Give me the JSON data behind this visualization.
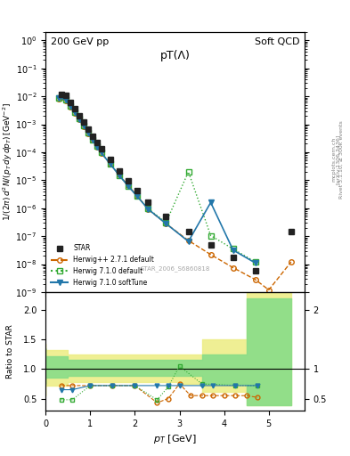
{
  "title_plot": "pT(Λ)",
  "top_left_label": "200 GeV pp",
  "top_right_label": "Soft QCD",
  "right_label": "Rivet 3.1.10, ≥ 300k events",
  "arxiv_label": "[arXiv:1306.3436]",
  "mcplots_label": "mcplots.cern.ch",
  "watermark": "STAR_2006_S6860818",
  "ylabel_main": "1/(2π) d²N/(p_T dy dp_T) [GeV⁻²]",
  "ylabel_ratio": "Ratio to STAR",
  "xlabel": "p_T [GeV]",
  "star_x": [
    0.35,
    0.45,
    0.55,
    0.65,
    0.75,
    0.85,
    0.95,
    1.05,
    1.15,
    1.25,
    1.45,
    1.65,
    1.85,
    2.05,
    2.3,
    2.7,
    3.2,
    3.7,
    4.2,
    4.7,
    5.5
  ],
  "star_y": [
    0.012,
    0.011,
    0.006,
    0.0035,
    0.002,
    0.0012,
    0.00065,
    0.00038,
    0.00022,
    0.00013,
    5.5e-05,
    2.2e-05,
    9.5e-06,
    4.2e-06,
    1.6e-06,
    5e-07,
    1.5e-07,
    5e-08,
    1.8e-08,
    6e-09,
    1.5e-07
  ],
  "star_yerr_lo": [
    0.001,
    0.001,
    0.0005,
    0.0003,
    0.0002,
    0.0001,
    6e-05,
    3.5e-05,
    2e-05,
    1.2e-05,
    5e-06,
    2e-06,
    9e-07,
    4e-07,
    1.5e-07,
    5e-08,
    1.5e-08,
    5e-09,
    2e-09,
    6e-10,
    1.5e-08
  ],
  "star_yerr_hi": [
    0.001,
    0.001,
    0.0005,
    0.0003,
    0.0002,
    0.0001,
    6e-05,
    3.5e-05,
    2e-05,
    1.2e-05,
    5e-06,
    2e-06,
    9e-07,
    4e-07,
    1.5e-07,
    5e-08,
    1.5e-08,
    5e-09,
    2e-09,
    6e-10,
    1.5e-08
  ],
  "hwpp_x": [
    0.3,
    0.45,
    0.55,
    0.65,
    0.75,
    0.85,
    0.95,
    1.05,
    1.15,
    1.25,
    1.45,
    1.65,
    1.85,
    2.05,
    2.3,
    2.7,
    3.2,
    3.7,
    4.2,
    4.7,
    5.0,
    5.5
  ],
  "hwpp_y": [
    0.008,
    0.007,
    0.0042,
    0.0025,
    0.0015,
    0.00085,
    0.00048,
    0.00028,
    0.00016,
    9.5e-05,
    3.8e-05,
    1.55e-05,
    6.5e-06,
    2.8e-06,
    9e-07,
    2.8e-07,
    7e-08,
    2.2e-08,
    7.5e-09,
    2.8e-09,
    1.2e-09,
    1.2e-08
  ],
  "hw710_x": [
    0.3,
    0.45,
    0.55,
    0.65,
    0.75,
    0.85,
    0.95,
    1.05,
    1.15,
    1.25,
    1.45,
    1.65,
    1.85,
    2.05,
    2.3,
    2.7,
    3.2,
    3.7,
    4.2,
    4.7
  ],
  "hw710_y": [
    0.009,
    0.0075,
    0.0044,
    0.0026,
    0.0016,
    0.00088,
    0.00049,
    0.00028,
    0.000165,
    9.8e-05,
    3.8e-05,
    1.5e-05,
    6.3e-06,
    2.7e-06,
    9.5e-07,
    3.1e-07,
    2e-05,
    1.05e-07,
    3.5e-08,
    1.2e-08
  ],
  "hw710st_x": [
    0.3,
    0.45,
    0.55,
    0.65,
    0.75,
    0.85,
    0.95,
    1.05,
    1.15,
    1.25,
    1.45,
    1.65,
    1.85,
    2.05,
    2.3,
    2.7,
    3.2,
    3.7,
    4.2,
    4.7
  ],
  "hw710st_y": [
    0.009,
    0.0075,
    0.0044,
    0.0026,
    0.00155,
    0.00087,
    0.00049,
    0.00028,
    0.00016,
    9.6e-05,
    3.8e-05,
    1.5e-05,
    6.2e-06,
    2.7e-06,
    9.2e-07,
    2.8e-07,
    6.5e-08,
    1.6e-06,
    3.2e-08,
    1.1e-08
  ],
  "ratio_hwpp_x": [
    0.35,
    0.6,
    1.0,
    1.5,
    2.0,
    2.5,
    2.75,
    3.0,
    3.25,
    3.5,
    3.75,
    4.0,
    4.25,
    4.5,
    4.75
  ],
  "ratio_hwpp_y": [
    0.72,
    0.72,
    0.72,
    0.72,
    0.72,
    0.43,
    0.5,
    0.75,
    0.55,
    0.55,
    0.55,
    0.55,
    0.55,
    0.55,
    0.52
  ],
  "ratio_hw710_x": [
    0.35,
    0.6,
    1.0,
    1.5,
    2.0,
    2.5,
    2.75,
    3.0,
    3.5,
    4.25,
    4.75
  ],
  "ratio_hw710_y": [
    0.48,
    0.48,
    0.72,
    0.72,
    0.72,
    0.48,
    0.7,
    1.05,
    0.75,
    0.72,
    0.72
  ],
  "ratio_hw710st_x": [
    0.35,
    0.6,
    1.0,
    1.5,
    2.0,
    2.5,
    2.75,
    3.0,
    3.5,
    3.75,
    4.25,
    4.75
  ],
  "ratio_hw710st_y": [
    0.65,
    0.65,
    0.72,
    0.72,
    0.72,
    0.72,
    0.72,
    0.72,
    0.72,
    0.72,
    0.72,
    0.72
  ],
  "band_green_x": [
    0,
    0.5,
    1.0,
    1.5,
    2.0,
    2.5,
    3.0,
    3.5,
    4.0,
    4.5,
    5.5
  ],
  "band_green_lo": [
    0.75,
    0.85,
    0.88,
    0.88,
    0.88,
    0.88,
    0.88,
    0.88,
    0.75,
    0.75,
    0.38
  ],
  "band_green_hi": [
    1.35,
    1.22,
    1.15,
    1.15,
    1.15,
    1.15,
    1.15,
    1.15,
    1.25,
    1.25,
    2.2
  ],
  "band_yellow_x": [
    0,
    0.5,
    1.0,
    1.5,
    2.0,
    2.5,
    3.0,
    3.5,
    4.0,
    4.5,
    5.5
  ],
  "band_yellow_lo": [
    0.55,
    0.72,
    0.78,
    0.78,
    0.78,
    0.78,
    0.78,
    0.75,
    0.62,
    0.62,
    0.38
  ],
  "band_yellow_hi": [
    1.42,
    1.32,
    1.25,
    1.25,
    1.25,
    1.25,
    1.25,
    1.25,
    1.5,
    1.5,
    2.3
  ],
  "color_star": "#222222",
  "color_hwpp": "#cc6600",
  "color_hw710": "#33aa33",
  "color_hw710st": "#2277aa",
  "color_band_green": "#88dd88",
  "color_band_yellow": "#eeee88",
  "xlim_main": [
    0,
    5.8
  ],
  "ylim_main_log": [
    -8.5,
    0
  ],
  "xlim_ratio": [
    0,
    5.5
  ],
  "ylim_ratio": [
    0.3,
    2.2
  ]
}
